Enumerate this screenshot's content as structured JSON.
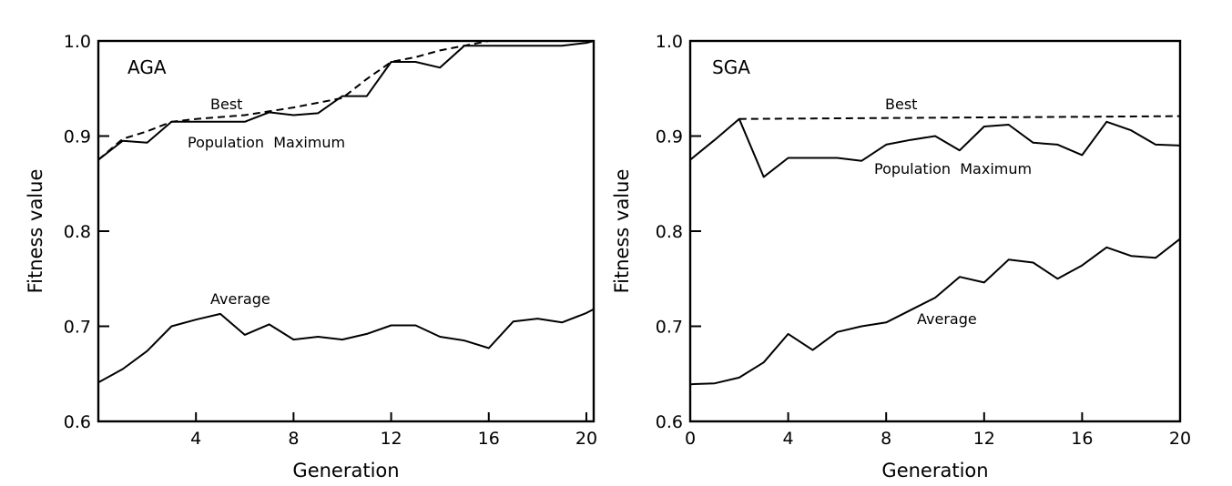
{
  "chart_data": [
    {
      "type": "line",
      "panel_label": "AGA",
      "xlabel": "Generation",
      "ylabel": "Fitness value",
      "xlim": [
        0,
        20.3
      ],
      "ylim": [
        0.6,
        1.0
      ],
      "x_ticks": [
        4,
        8,
        12,
        16,
        20
      ],
      "x_tick_labels": [
        "4",
        "8",
        "12",
        "16",
        "20"
      ],
      "y_ticks": [
        0.6,
        0.7,
        0.8,
        0.9,
        1.0
      ],
      "y_tick_labels": [
        "0.6",
        "0.7",
        "0.8",
        "0.9",
        "1.0"
      ],
      "series": [
        {
          "name": "Best",
          "style": "dashed",
          "x": [
            0,
            1,
            2,
            3,
            4,
            5,
            6,
            7,
            8,
            9,
            10,
            11,
            12,
            13,
            14,
            15,
            16,
            17,
            18,
            19,
            20,
            20.3
          ],
          "y": [
            0.875,
            0.897,
            0.905,
            0.915,
            0.918,
            0.92,
            0.922,
            0.926,
            0.93,
            0.935,
            0.94,
            0.96,
            0.978,
            0.983,
            0.99,
            0.995,
            1.0,
            1.0,
            1.0,
            1.0,
            1.0,
            1.0
          ]
        },
        {
          "name": "Population Maximum",
          "style": "solid",
          "x": [
            0,
            1,
            2,
            3,
            4,
            5,
            6,
            7,
            8,
            9,
            10,
            11,
            12,
            13,
            14,
            15,
            16,
            17,
            18,
            19,
            20,
            20.3
          ],
          "y": [
            0.875,
            0.895,
            0.893,
            0.915,
            0.915,
            0.915,
            0.915,
            0.925,
            0.922,
            0.924,
            0.942,
            0.942,
            0.978,
            0.978,
            0.972,
            0.995,
            0.995,
            0.995,
            0.995,
            0.995,
            0.998,
            1.0
          ]
        },
        {
          "name": "Average",
          "style": "solid",
          "x": [
            0,
            1,
            2,
            3,
            4,
            5,
            6,
            7,
            8,
            9,
            10,
            11,
            12,
            13,
            14,
            15,
            16,
            17,
            18,
            19,
            20,
            20.3
          ],
          "y": [
            0.641,
            0.655,
            0.674,
            0.7,
            0.707,
            0.713,
            0.691,
            0.702,
            0.686,
            0.689,
            0.686,
            0.692,
            0.701,
            0.701,
            0.689,
            0.685,
            0.677,
            0.705,
            0.708,
            0.704,
            0.714,
            0.718
          ]
        }
      ],
      "annotations": [
        {
          "text": "Best",
          "series": "Best"
        },
        {
          "text": "Population  Maximum",
          "series": "Population Maximum"
        },
        {
          "text": "Average",
          "series": "Average"
        }
      ]
    },
    {
      "type": "line",
      "panel_label": "SGA",
      "xlabel": "Generation",
      "ylabel": "Fitness value",
      "xlim": [
        0,
        20
      ],
      "ylim": [
        0.6,
        1.0
      ],
      "x_ticks": [
        0,
        4,
        8,
        12,
        16,
        20
      ],
      "x_tick_labels": [
        "0",
        "4",
        "8",
        "12",
        "16",
        "20"
      ],
      "y_ticks": [
        0.6,
        0.7,
        0.8,
        0.9,
        1.0
      ],
      "y_tick_labels": [
        "0.6",
        "0.7",
        "0.8",
        "0.9",
        "1.0"
      ],
      "series": [
        {
          "name": "Best",
          "style": "dashed",
          "x": [
            2,
            20
          ],
          "y": [
            0.918,
            0.921
          ]
        },
        {
          "name": "Population Maximum",
          "style": "solid",
          "x": [
            0,
            1,
            2,
            3,
            4,
            5,
            6,
            7,
            8,
            9,
            10,
            11,
            12,
            13,
            14,
            15,
            16,
            17,
            18,
            19,
            20
          ],
          "y": [
            0.875,
            0.896,
            0.918,
            0.857,
            0.877,
            0.877,
            0.877,
            0.874,
            0.891,
            0.896,
            0.9,
            0.885,
            0.91,
            0.912,
            0.893,
            0.891,
            0.88,
            0.915,
            0.906,
            0.891,
            0.89
          ]
        },
        {
          "name": "Average",
          "style": "solid",
          "x": [
            0,
            1,
            2,
            3,
            4,
            5,
            6,
            7,
            8,
            9,
            10,
            11,
            12,
            13,
            14,
            15,
            16,
            17,
            18,
            19,
            20
          ],
          "y": [
            0.639,
            0.64,
            0.646,
            0.662,
            0.692,
            0.675,
            0.694,
            0.7,
            0.704,
            0.717,
            0.73,
            0.752,
            0.746,
            0.77,
            0.767,
            0.75,
            0.764,
            0.783,
            0.774,
            0.772,
            0.792
          ]
        }
      ],
      "annotations": [
        {
          "text": "Best",
          "series": "Best"
        },
        {
          "text": "Population  Maximum",
          "series": "Population Maximum"
        },
        {
          "text": "Average",
          "series": "Average"
        }
      ]
    }
  ]
}
